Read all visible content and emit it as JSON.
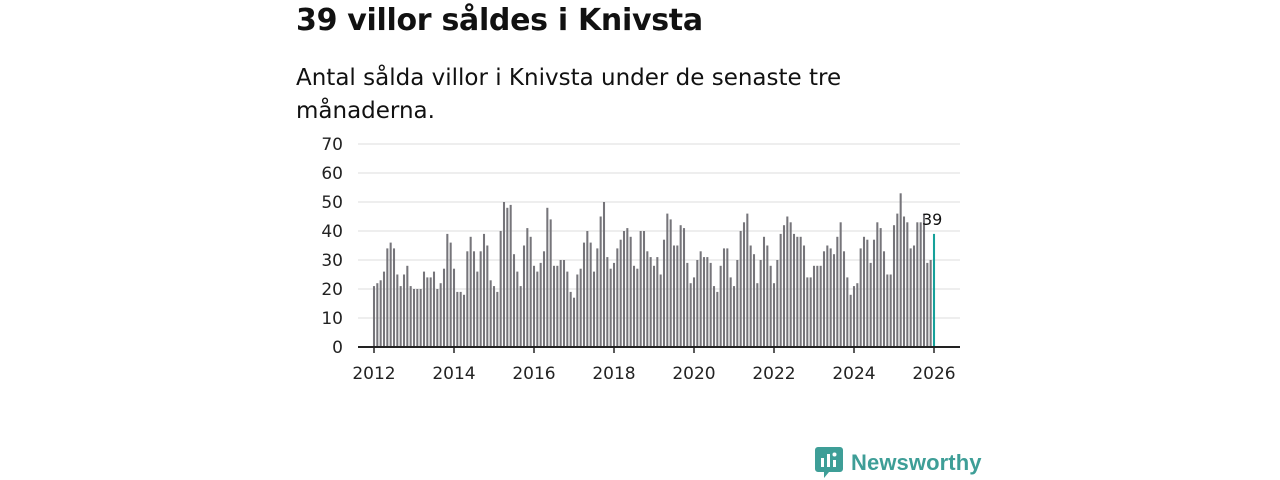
{
  "title": "39 villor såldes i Knivsta",
  "subtitle": "Antal sålda villor i Knivsta under de senaste tre månaderna.",
  "brand": {
    "name": "Newsworthy",
    "icon": "newsworthy-logo-icon",
    "color": "#3e9e97"
  },
  "colors": {
    "bar": "#76757a",
    "highlight": "#16a19a",
    "grid": "#dddddd",
    "axis": "#222222"
  },
  "chart_data": {
    "type": "bar",
    "title": "Antal sålda villor i Knivsta under de senaste tre månaderna.",
    "xlabel": "",
    "ylabel": "",
    "ylim": [
      0,
      70
    ],
    "yticks": [
      0,
      10,
      20,
      30,
      40,
      50,
      60,
      70
    ],
    "xlim": [
      2011.5,
      2026.7
    ],
    "xticks": [
      2012,
      2014,
      2016,
      2018,
      2020,
      2022,
      2024,
      2026
    ],
    "start": {
      "year": 2012,
      "month": 1
    },
    "frequency": "monthly",
    "values": [
      21,
      22,
      23,
      26,
      34,
      36,
      34,
      25,
      21,
      25,
      28,
      21,
      20,
      20,
      20,
      26,
      24,
      24,
      26,
      20,
      22,
      27,
      39,
      36,
      27,
      19,
      19,
      18,
      33,
      38,
      33,
      26,
      33,
      39,
      35,
      23,
      21,
      19,
      40,
      50,
      48,
      49,
      32,
      26,
      21,
      35,
      41,
      38,
      28,
      26,
      29,
      33,
      48,
      44,
      28,
      28,
      30,
      30,
      26,
      19,
      17,
      25,
      27,
      36,
      40,
      36,
      26,
      34,
      45,
      50,
      31,
      27,
      29,
      34,
      37,
      40,
      41,
      38,
      28,
      27,
      40,
      40,
      33,
      31,
      28,
      31,
      25,
      37,
      46,
      44,
      35,
      35,
      42,
      41,
      29,
      22,
      24,
      30,
      33,
      31,
      31,
      29,
      21,
      19,
      28,
      34,
      34,
      24,
      21,
      30,
      40,
      43,
      46,
      35,
      32,
      22,
      30,
      38,
      35,
      28,
      22,
      30,
      39,
      42,
      45,
      43,
      39,
      38,
      38,
      35,
      24,
      24,
      28,
      28,
      28,
      33,
      35,
      34,
      32,
      38,
      43,
      33,
      24,
      18,
      21,
      22,
      34,
      38,
      37,
      29,
      37,
      43,
      41,
      33,
      25,
      25,
      42,
      46,
      53,
      45,
      43,
      34,
      35,
      43,
      43,
      46,
      29,
      30,
      39
    ],
    "highlight": {
      "index": 168,
      "label": "39"
    }
  }
}
